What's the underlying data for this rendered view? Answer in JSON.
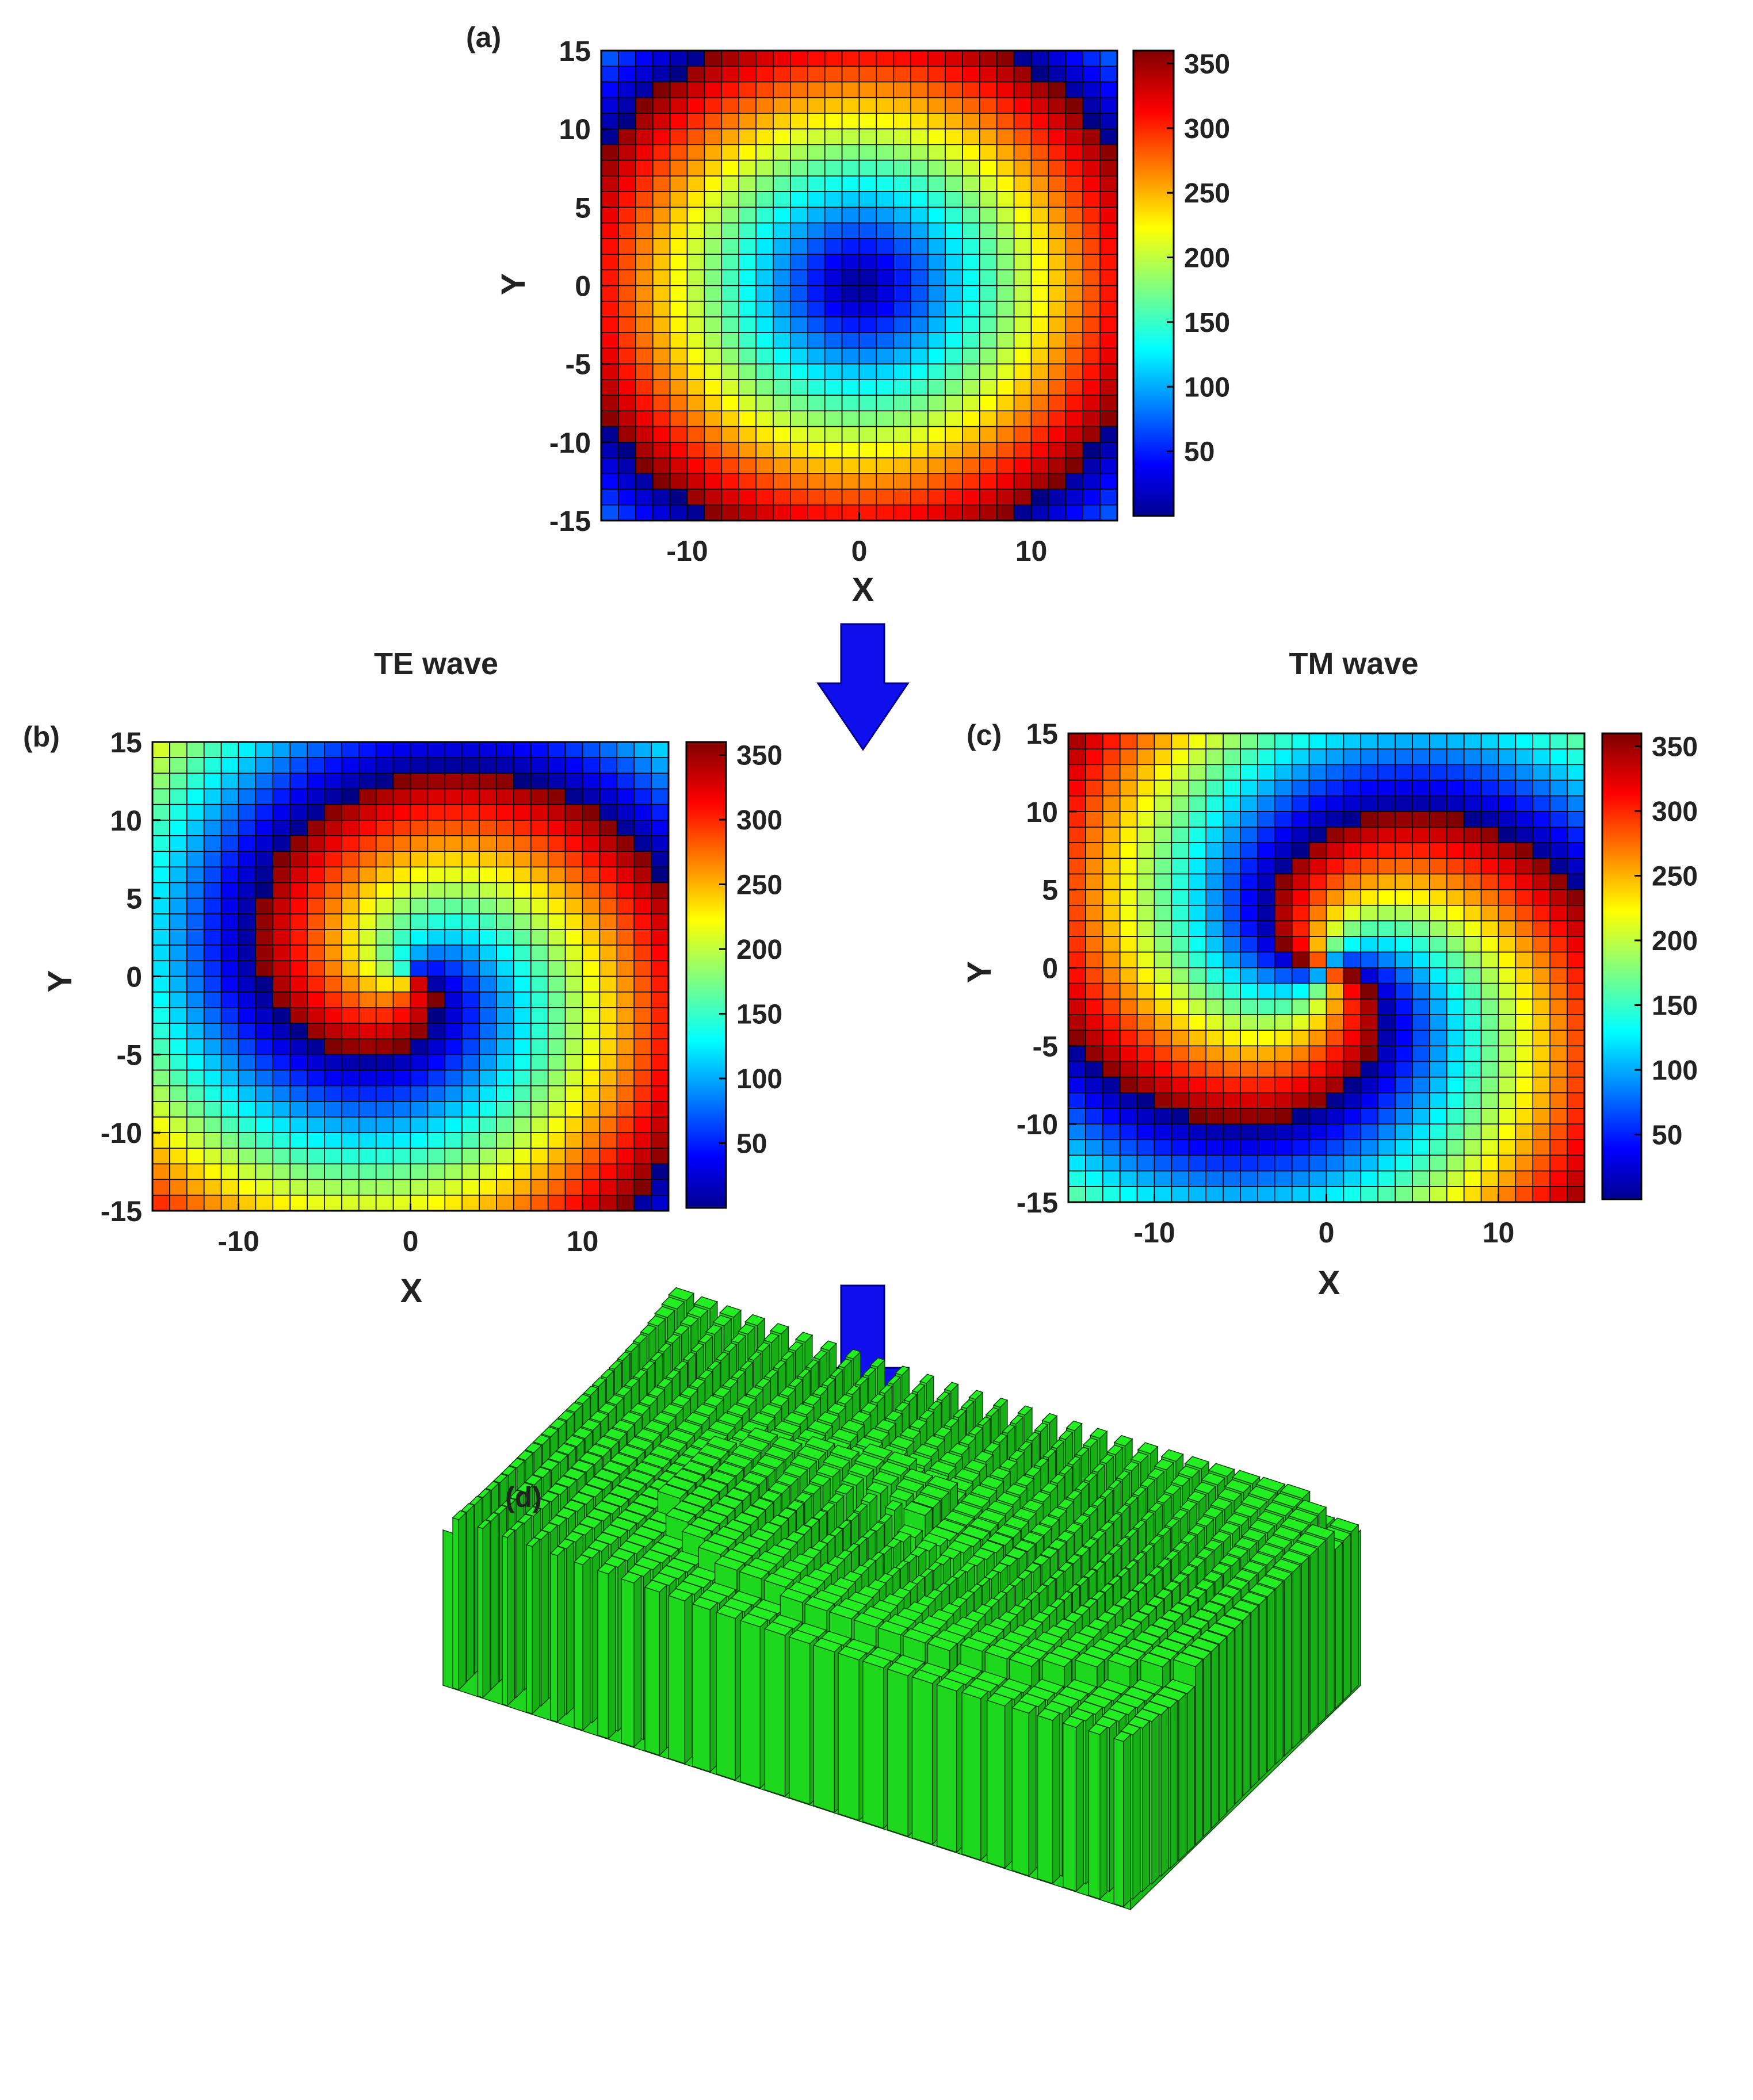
{
  "colors": {
    "arrow": "#1010ee",
    "box_fill": "#22ee22",
    "box_stroke": "#0a3a0a",
    "grid_line": "#000000"
  },
  "colormap": "jet",
  "chart_data": [
    {
      "type": "heatmap",
      "panel_label": "(a)",
      "title": "",
      "xlabel": "X",
      "ylabel": "Y",
      "xlim": [
        -15,
        15
      ],
      "ylim": [
        -15,
        15
      ],
      "x_ticks": [
        -10,
        0,
        10
      ],
      "y_ticks": [
        -15,
        -10,
        -5,
        0,
        5,
        10,
        15
      ],
      "grid_size": 30,
      "colorbar": {
        "range": [
          0,
          360
        ],
        "ticks": [
          50,
          100,
          150,
          200,
          250,
          300,
          350
        ]
      },
      "pattern": "radial phase (concentric rings)",
      "params": {
        "k": 17.0,
        "theta_coeff": 0
      }
    },
    {
      "type": "heatmap",
      "panel_label": "(b)",
      "title": "TE wave",
      "xlabel": "X",
      "ylabel": "Y",
      "xlim": [
        -15,
        15
      ],
      "ylim": [
        -15,
        15
      ],
      "x_ticks": [
        -10,
        0,
        10
      ],
      "y_ticks": [
        -15,
        -10,
        -5,
        0,
        5,
        10,
        15
      ],
      "grid_size": 30,
      "colorbar": {
        "range": [
          0,
          360
        ],
        "ticks": [
          50,
          100,
          150,
          200,
          250,
          300,
          350
        ]
      },
      "pattern": "single-arm spiral phase",
      "params": {
        "k": 17.0,
        "theta_coeff": 1
      }
    },
    {
      "type": "heatmap",
      "panel_label": "(c)",
      "title": "TM wave",
      "xlabel": "X",
      "ylabel": "Y",
      "xlim": [
        -15,
        15
      ],
      "ylim": [
        -15,
        15
      ],
      "x_ticks": [
        -10,
        0,
        10
      ],
      "y_ticks": [
        -15,
        -10,
        -5,
        0,
        5,
        10,
        15
      ],
      "grid_size": 30,
      "colorbar": {
        "range": [
          0,
          360
        ],
        "ticks": [
          50,
          100,
          150,
          200,
          250,
          300,
          350
        ]
      },
      "pattern": "two-arm spiral phase",
      "params": {
        "k": 17.0,
        "theta_coeff": 2
      }
    }
  ],
  "panel_d": {
    "panel_label": "(d)",
    "pattern": "3D array of green rectangular pillars"
  }
}
